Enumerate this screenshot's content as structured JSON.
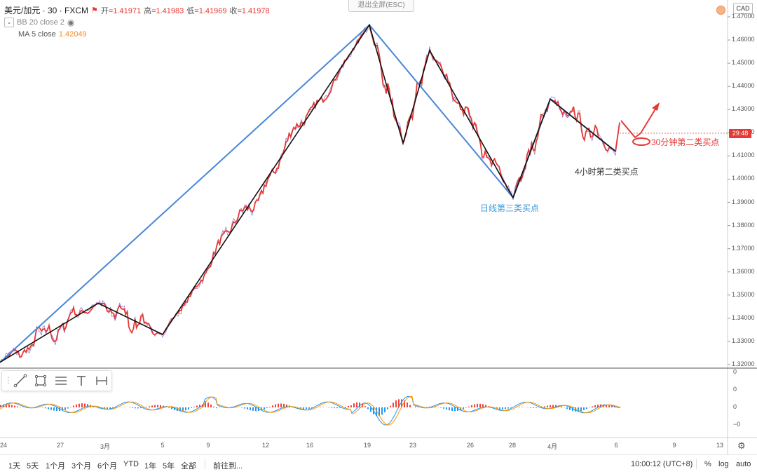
{
  "header": {
    "symbol": "美元/加元 · 30 · FXCM",
    "ohlc": [
      {
        "label": "开",
        "value": "=1.41971"
      },
      {
        "label": "高",
        "value": "=1.41983"
      },
      {
        "label": "低",
        "value": "=1.41969"
      },
      {
        "label": "收",
        "value": "=1.41978"
      }
    ],
    "bb_label": "BB 20 close 2",
    "ma_label": "MA 5 close",
    "ma_value": "1.42049",
    "exit_fullscreen": "退出全屏(ESC)",
    "currency": "CAD",
    "countdown": "29:48"
  },
  "price_axis": [
    "1.47000",
    "1.46000",
    "1.45000",
    "1.44000",
    "1.43000",
    "1.42000",
    "1.41000",
    "1.40000",
    "1.39000",
    "1.38000",
    "1.37000",
    "1.36000",
    "1.35000",
    "1.34000",
    "1.33000",
    "1.32000"
  ],
  "osc_axis": [
    "0",
    "0",
    "0",
    "−0"
  ],
  "date_axis": [
    "24",
    "27",
    "3月",
    "5",
    "9",
    "12",
    "16",
    "19",
    "23",
    "26",
    "28",
    "4月",
    "6",
    "9",
    "13"
  ],
  "annotations": {
    "daily": "日线第三类买点",
    "four_hour": "4小时第二类买点",
    "thirty_min": "30分钟第二类买点"
  },
  "drawing_tools": [
    "trend-line-icon",
    "rectangle-icon",
    "horizontal-lines-icon",
    "text-icon",
    "measure-icon"
  ],
  "bottom": {
    "ranges": [
      "1天",
      "5天",
      "1个月",
      "3个月",
      "6个月",
      "YTD",
      "1年",
      "5年",
      "全部"
    ],
    "goto": "前往到...",
    "clock": "10:00:12 (UTC+8)",
    "percent": "%",
    "log": "log",
    "auto": "auto"
  },
  "colors": {
    "candle_line": "#e53935",
    "ma_line": "#e53935",
    "bb_purple": "#7e57c2",
    "stroke_blue": "#4a86d8",
    "stroke_black": "#111111",
    "annot_blue": "#3a9ad9",
    "annot_red": "#e53935",
    "macd_red": "#f44336",
    "macd_blue": "#2196f3"
  },
  "chart_data": {
    "type": "line",
    "title": "美元/加元 · 30 · FXCM",
    "ylim": [
      1.32,
      1.47
    ],
    "x_labels": [
      "24",
      "27",
      "3月",
      "5",
      "9",
      "12",
      "16",
      "19",
      "23",
      "26",
      "28",
      "4月",
      "6",
      "9",
      "13"
    ],
    "series": [
      {
        "name": "blue-strokes",
        "points": [
          [
            0,
            1.321
          ],
          [
            527,
            1.4665
          ],
          [
            732,
            1.392
          ],
          [
            785,
            1.4345
          ],
          [
            878,
            1.412
          ]
        ]
      },
      {
        "name": "black-strokes",
        "points": [
          [
            0,
            1.321
          ],
          [
            140,
            1.3465
          ],
          [
            232,
            1.333
          ],
          [
            527,
            1.4665
          ],
          [
            575,
            1.4155
          ],
          [
            613,
            1.4555
          ],
          [
            732,
            1.392
          ],
          [
            785,
            1.4345
          ],
          [
            878,
            1.412
          ]
        ]
      }
    ]
  }
}
